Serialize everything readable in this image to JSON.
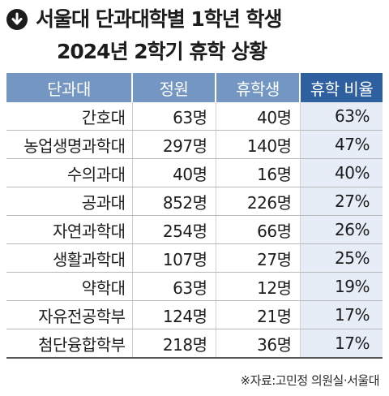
{
  "title": {
    "line1": "서울대 단과대학별 1학년 학생",
    "line2": "2024년 2학기 휴학 상황",
    "icon": "arrow-down-circle-icon"
  },
  "table": {
    "headers": [
      "단과대",
      "정원",
      "휴학생",
      "휴학 비율"
    ],
    "rows": [
      [
        "간호대",
        "63명",
        "40명",
        "63%"
      ],
      [
        "농업생명과학대",
        "297명",
        "140명",
        "47%"
      ],
      [
        "수의과대",
        "40명",
        "16명",
        "40%"
      ],
      [
        "공과대",
        "852명",
        "226명",
        "27%"
      ],
      [
        "자연과학대",
        "254명",
        "66명",
        "26%"
      ],
      [
        "생활과학대",
        "107명",
        "27명",
        "25%"
      ],
      [
        "약학대",
        "63명",
        "12명",
        "19%"
      ],
      [
        "자유전공학부",
        "124명",
        "21명",
        "17%"
      ],
      [
        "첨단융합학부",
        "218명",
        "36명",
        "17%"
      ]
    ]
  },
  "source": "※자료:고민정 의원실·서울대",
  "colors": {
    "header_light": "#7396c3",
    "header_dark": "#2e5f9f",
    "ratio_bg": "#e6edf7",
    "text": "#1c1c1c"
  }
}
